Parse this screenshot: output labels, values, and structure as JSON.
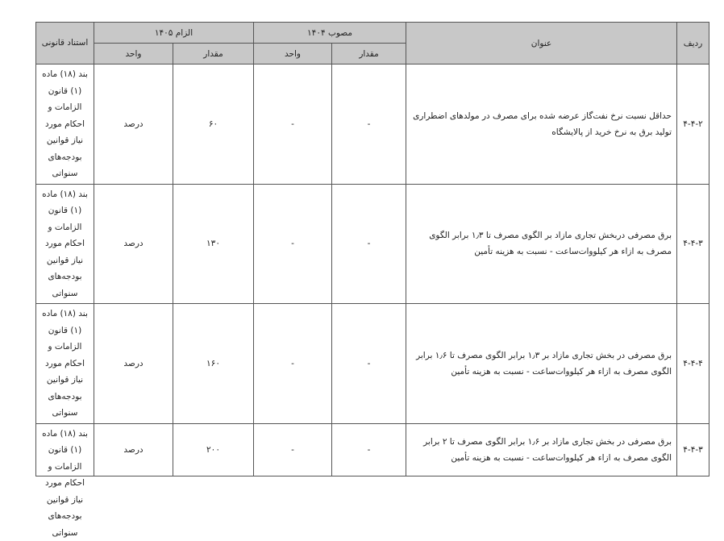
{
  "header": {
    "row_no": "ردیف",
    "title": "عنوان",
    "approved_group": "مصوب ۱۴۰۴",
    "required_group": "الزام ۱۴۰۵",
    "amount": "مقدار",
    "unit": "واحد",
    "legal_basis": "استناد قانونی"
  },
  "rows": [
    {
      "no": "۴-۴-۲",
      "title": "حداقل نسبت نرخ نفت‌گاز عرضه شده برای مصرف در مولدهای اضطراری تولید برق به نرخ خرید از پالایشگاه",
      "approved_amount": "-",
      "approved_unit": "-",
      "required_amount": "۶۰",
      "required_unit": "درصد",
      "legal_basis": "بند (۱۸) ماده (۱) قانون الزامات و احکام مورد نیاز قوانین بودجه‌های سنواتی"
    },
    {
      "no": "۴-۴-۳",
      "title": "برق مصرفی دربخش تجاری مازاد بر الگوی مصرف تا ۱٫۳ برابر الگوی مصرف به ازاء هر کیلووات‌ساعت  - نسبت به هزینه تأمین",
      "approved_amount": "-",
      "approved_unit": "-",
      "required_amount": "۱۳۰",
      "required_unit": "درصد",
      "legal_basis": "بند (۱۸) ماده (۱) قانون الزامات و احکام مورد نیاز قوانین بودجه‌های سنواتی"
    },
    {
      "no": "۴-۴-۴",
      "title": "برق مصرفی در بخش تجاری مازاد بر ۱٫۳ برابر الگوی مصرف تا ۱٫۶ برابر الگوی مصرف به ازاء هر کیلووات‌ساعت - نسبت به هزینه تأمین",
      "approved_amount": "-",
      "approved_unit": "-",
      "required_amount": "۱۶۰",
      "required_unit": "درصد",
      "legal_basis": "بند (۱۸) ماده (۱) قانون الزامات و احکام مورد نیاز قوانین بودجه‌های سنواتی"
    },
    {
      "no": "۴-۴-۳",
      "title": "برق مصرفی در بخش تجاری مازاد بر ۱٫۶ برابر الگوی مصرف تا ۲ برابر الگوی مصرف به ازاء هر کیلووات‌ساعت - نسبت به هزینه تأمین",
      "approved_amount": "-",
      "approved_unit": "-",
      "required_amount": "۲۰۰",
      "required_unit": "درصد",
      "legal_basis": "بند (۱۸) ماده (۱) قانون الزامات و احکام مورد نیاز قوانین بودجه‌های سنواتی"
    }
  ]
}
